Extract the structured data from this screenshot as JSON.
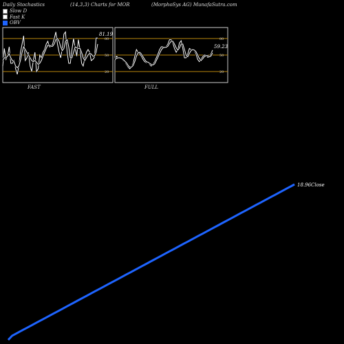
{
  "header": {
    "left": "Daily Stochastics",
    "middle": "(14,3,3) Charts for MOR",
    "right": "(MorphoSys AG) MunafaSutra.com"
  },
  "legend": [
    {
      "label": "Slow D",
      "color": "#ffffff"
    },
    {
      "label": "Fast K",
      "color": "#ffffff"
    },
    {
      "label": "OBV",
      "color": "#1e64ff"
    }
  ],
  "colors": {
    "background": "#000000",
    "obv": "#1e64ff",
    "price": "#ffffff",
    "band": "#b8860b",
    "frame": "#cccccc"
  },
  "chart_data": [
    {
      "type": "line",
      "title": "FAST",
      "ylim": [
        0,
        100
      ],
      "yticks": [
        20,
        50,
        80
      ],
      "bands": [
        20,
        50,
        80
      ],
      "last_label": "81.19",
      "series": [
        {
          "name": "Fast K",
          "values": [
            30,
            62,
            42,
            48,
            65,
            35,
            35,
            40,
            25,
            15,
            30,
            55,
            70,
            85,
            40,
            45,
            55,
            30,
            20,
            40,
            55,
            20,
            25,
            50,
            45,
            55,
            60,
            70,
            75,
            65,
            65,
            70,
            80,
            92,
            70,
            55,
            45,
            62,
            88,
            92,
            55,
            35,
            35,
            60,
            80,
            62,
            48,
            78,
            60,
            35,
            30,
            45,
            55,
            60,
            55,
            40,
            42,
            46,
            81,
            81
          ]
        },
        {
          "name": "Slow D",
          "values": [
            40,
            45,
            45,
            48,
            52,
            45,
            40,
            38,
            30,
            27,
            30,
            40,
            55,
            65,
            60,
            55,
            50,
            45,
            40,
            38,
            40,
            37,
            33,
            35,
            40,
            48,
            55,
            62,
            68,
            68,
            66,
            66,
            70,
            78,
            80,
            75,
            65,
            58,
            62,
            75,
            78,
            65,
            45,
            45,
            55,
            65,
            63,
            62,
            62,
            55,
            45,
            40,
            45,
            50,
            53,
            52,
            48,
            48,
            55,
            70
          ]
        }
      ]
    },
    {
      "type": "line",
      "title": "FULL",
      "ylim": [
        0,
        100
      ],
      "yticks": [
        20,
        50,
        80
      ],
      "bands": [
        20,
        50,
        80
      ],
      "last_label": "59.23",
      "series": [
        {
          "name": "Full K",
          "values": [
            40,
            48,
            45,
            45,
            45,
            40,
            38,
            33,
            28,
            25,
            28,
            35,
            48,
            60,
            55,
            52,
            48,
            42,
            38,
            36,
            38,
            33,
            30,
            33,
            38,
            45,
            52,
            60,
            65,
            65,
            63,
            65,
            70,
            78,
            78,
            72,
            62,
            55,
            60,
            72,
            76,
            62,
            45,
            45,
            52,
            62,
            60,
            60,
            58,
            52,
            42,
            38,
            42,
            47,
            50,
            50,
            46,
            46,
            52,
            59
          ]
        },
        {
          "name": "Full D",
          "values": [
            42,
            44,
            45,
            45,
            44,
            42,
            39,
            36,
            31,
            28,
            28,
            31,
            38,
            48,
            54,
            55,
            52,
            47,
            42,
            38,
            37,
            35,
            33,
            32,
            34,
            40,
            46,
            53,
            59,
            63,
            64,
            64,
            66,
            71,
            75,
            75,
            70,
            63,
            59,
            63,
            70,
            70,
            60,
            50,
            47,
            53,
            58,
            60,
            59,
            56,
            50,
            44,
            40,
            43,
            47,
            49,
            49,
            47,
            48,
            54
          ]
        }
      ]
    },
    {
      "type": "line",
      "series": [
        {
          "name": "OBV",
          "values": [
            0,
            1,
            1.5,
            2,
            2.5,
            3,
            3.5,
            4,
            4.5,
            5,
            5.5,
            6,
            6.5,
            7,
            7.5,
            8,
            8.5,
            9,
            9.5,
            10,
            10.5,
            11,
            11.5,
            12,
            12.5,
            13,
            13.5,
            14,
            14.5,
            15,
            15.5,
            16,
            16.5,
            17,
            17.5,
            18,
            18.5,
            19,
            19.5,
            20,
            20.5,
            21,
            21.5,
            22,
            22.5,
            23,
            23.5,
            24,
            24.5,
            25,
            25.5,
            26,
            26.5,
            27,
            27.5,
            28,
            28.5,
            29,
            29.5,
            30,
            30.5,
            31,
            31.5,
            32,
            32.5,
            33,
            33.5,
            34,
            34.5,
            35,
            35.5,
            36,
            36.5,
            37,
            37.5,
            38
          ]
        },
        {
          "name": "Close",
          "values": [
            0,
            1,
            1.5,
            2,
            2.5,
            3,
            3.5,
            4,
            4.5,
            5,
            5.5,
            6,
            6.5,
            7,
            7.5,
            8,
            8.5,
            9,
            9.5,
            10,
            10.5,
            11,
            11.5,
            12,
            12.5,
            13,
            13.5,
            14,
            14.5,
            15,
            15.5,
            16,
            16.5,
            17,
            17.5,
            18,
            18.5,
            19,
            19.5,
            20,
            20.5,
            21,
            21.5,
            22,
            22.5,
            23,
            23.5,
            24,
            24.5,
            25,
            25.5,
            26,
            26.5,
            27,
            27.5,
            28,
            28.5,
            29,
            29.5,
            30,
            30.5,
            31,
            31.5,
            32,
            32.5,
            33,
            33.5,
            34,
            34.5,
            35,
            35.5,
            36,
            36.5,
            37,
            37.5,
            38
          ]
        }
      ],
      "last_label": "18.96",
      "last_label_suffix": "Close"
    }
  ]
}
